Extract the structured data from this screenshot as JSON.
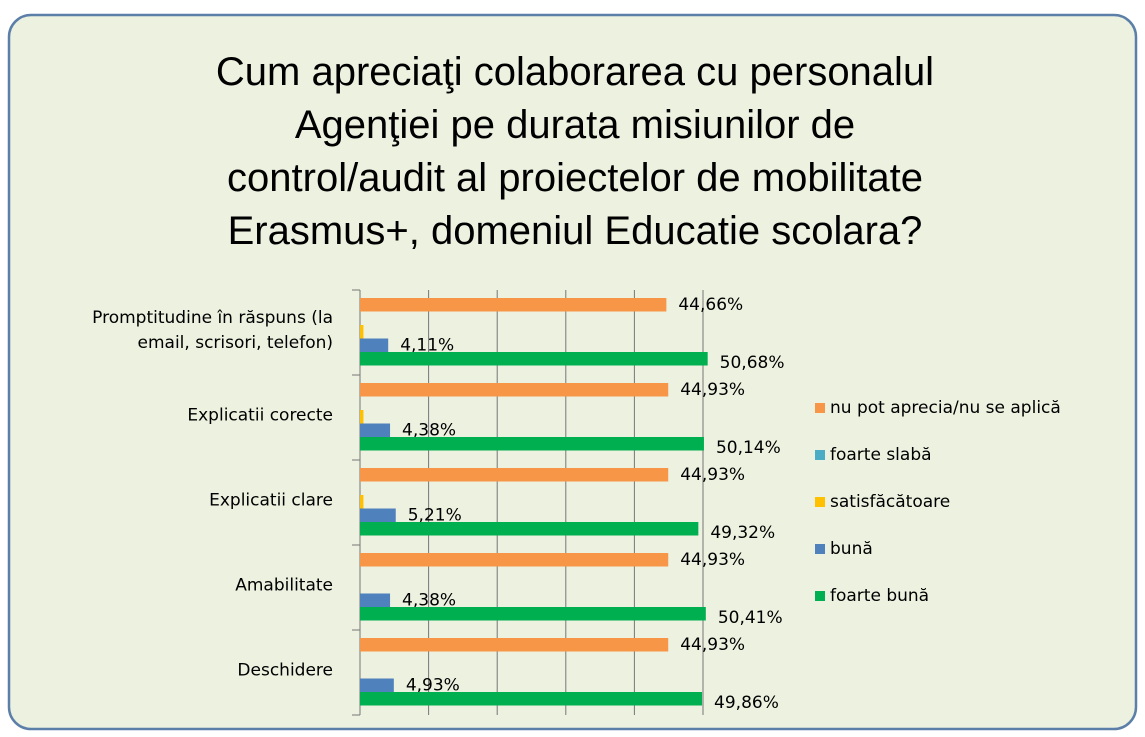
{
  "chart_data": {
    "type": "bar",
    "orientation": "horizontal",
    "title": "Cum apreciaţi colaborarea cu personalul\nAgenţiei pe durata misiunilor de\ncontrol/audit al proiectelor de mobilitate\nErasmus+, domeniul Educatie scolara?",
    "categories": [
      "Promptitudine în răspuns (la\nemail, scrisori, telefon)",
      "Explicatii corecte",
      "Explicatii clare",
      "Amabilitate",
      "Deschidere"
    ],
    "series": [
      {
        "name": "nu pot aprecia/nu se aplică",
        "color": "#f79646",
        "values": [
          44.66,
          44.93,
          44.93,
          44.93,
          44.93
        ],
        "value_labels": [
          "44,66%",
          "44,93%",
          "44,93%",
          "44,93%",
          "44,93%"
        ]
      },
      {
        "name": "foarte slabă",
        "color": "#4bacc6",
        "values": [
          0,
          0,
          0,
          0,
          0
        ]
      },
      {
        "name": "satisfăcătoare",
        "color": "#ffc000",
        "values": [
          0.5,
          0.5,
          0.5,
          0,
          0
        ]
      },
      {
        "name": "bună",
        "color": "#4f81bd",
        "values": [
          4.11,
          4.38,
          5.21,
          4.38,
          4.93
        ],
        "value_labels": [
          "4,11%",
          "4,38%",
          "5,21%",
          "4,38%",
          "4,93%"
        ]
      },
      {
        "name": "foarte bună",
        "color": "#00b050",
        "values": [
          50.68,
          50.14,
          49.32,
          50.41,
          49.86
        ],
        "value_labels": [
          "50,68%",
          "50,14%",
          "49,32%",
          "50,41%",
          "49,86%"
        ]
      }
    ],
    "xlim": [
      0,
      60
    ],
    "xticks": [
      0,
      10,
      20,
      30,
      40,
      50
    ],
    "grid": true,
    "legend": "right"
  }
}
